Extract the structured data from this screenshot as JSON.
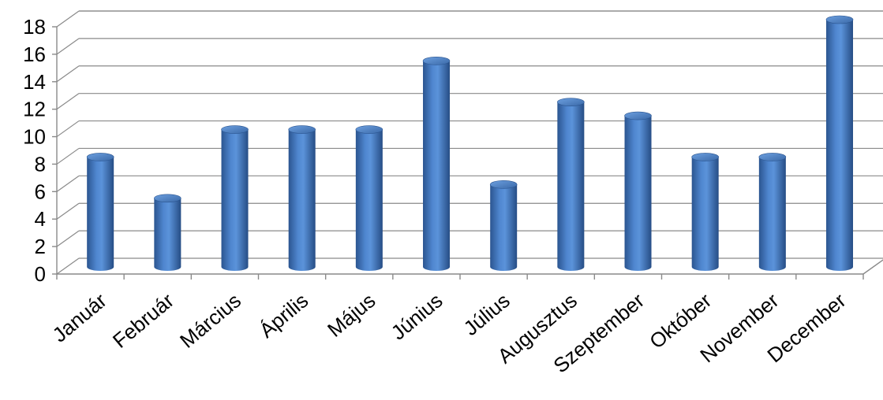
{
  "chart_data": {
    "type": "bar",
    "style": "3d-cylinder",
    "categories": [
      "Január",
      "Február",
      "Március",
      "Április",
      "Május",
      "Június",
      "Július",
      "Augusztus",
      "Szeptember",
      "Október",
      "November",
      "December"
    ],
    "values": [
      8,
      5,
      10,
      10,
      10,
      15,
      6,
      12,
      11,
      8,
      8,
      18
    ],
    "ylim": [
      0,
      18
    ],
    "yticks": [
      "0",
      "2",
      "4",
      "6",
      "8",
      "10",
      "12",
      "14",
      "16",
      "18"
    ],
    "grid": true,
    "legend": "none",
    "bar_color": "#3f6fb0"
  }
}
